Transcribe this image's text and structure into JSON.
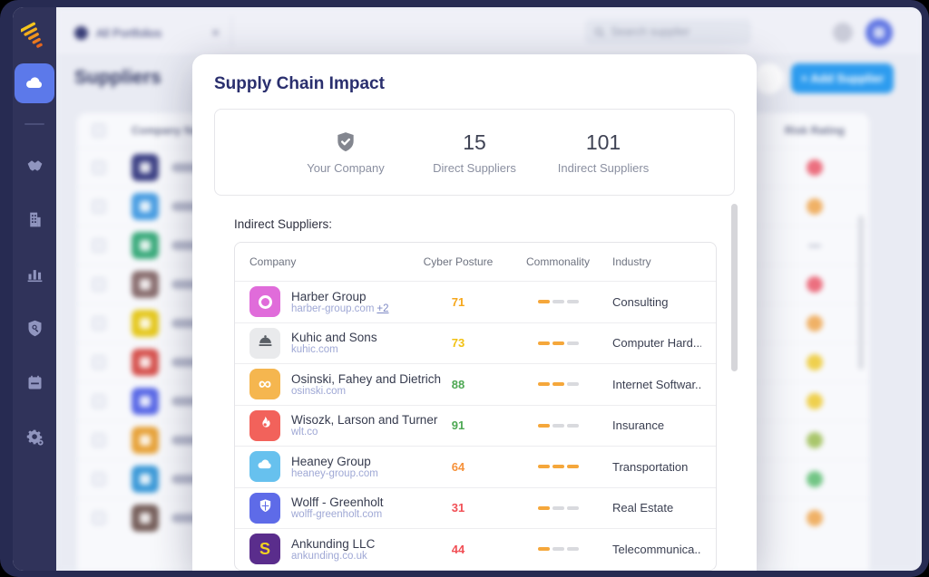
{
  "topbar": {
    "tab_label": "All Portfolios",
    "tab_close": "×",
    "search_placeholder": "Search supplier"
  },
  "sidebar": {
    "icons": [
      "cloud",
      "handshake",
      "building",
      "bar-chart",
      "shield-search",
      "calendar",
      "settings"
    ]
  },
  "page": {
    "title": "Suppliers",
    "add_button_label": "+ Add Supplier",
    "columns": {
      "company": "Company Name",
      "risk": "Risk Rating"
    },
    "rows": [
      {
        "avatar_color": "#3e4286",
        "name_width": 62,
        "risk": "#ec6f7f"
      },
      {
        "avatar_color": "#4a9ee2",
        "name_width": 68,
        "risk": "#f0b166"
      },
      {
        "avatar_color": "#3cab7d",
        "name_width": 74,
        "risk": "dash"
      },
      {
        "avatar_color": "#8a6f70",
        "name_width": 78,
        "risk": "#ec6f7f"
      },
      {
        "avatar_color": "#e5c81f",
        "name_width": 66,
        "risk": "#f0b166"
      },
      {
        "avatar_color": "#d65450",
        "name_width": 84,
        "risk": "#efd04e"
      },
      {
        "avatar_color": "#5a69e6",
        "name_width": 60,
        "risk": "#efd04e"
      },
      {
        "avatar_color": "#e7a33b",
        "name_width": 78,
        "risk": "#a9c66b"
      },
      {
        "avatar_color": "#3d9ad8",
        "name_width": 72,
        "risk": "#72c585"
      },
      {
        "avatar_color": "#77605c",
        "name_width": 66,
        "risk": "#f0b166"
      }
    ]
  },
  "modal": {
    "title": "Supply Chain Impact",
    "stats": {
      "company_label": "Your Company",
      "direct": {
        "value": "15",
        "label": "Direct Suppliers"
      },
      "indirect": {
        "value": "101",
        "label": "Indirect Suppliers"
      }
    },
    "section_label": "Indirect Suppliers:",
    "table": {
      "headers": [
        "Company",
        "Cyber Posture",
        "Commonality",
        "Industry"
      ],
      "commonality_filled_color": "#f5a73b",
      "commonality_empty_color": "#d9dade",
      "rows": [
        {
          "company": "Harber Group",
          "domain": "harber-group.com",
          "extra": "+2",
          "posture": "71",
          "posture_color": "#f6a71b",
          "commonality": 1,
          "commonality_total": 3,
          "industry": "Consulting",
          "icon": {
            "type": "ring",
            "bg": "#e06cda",
            "fg": "#ffffff"
          }
        },
        {
          "company": "Kuhic and Sons",
          "domain": "kuhic.com",
          "posture": "73",
          "posture_color": "#f2c112",
          "commonality": 2,
          "commonality_total": 3,
          "industry": "Computer Hard...",
          "icon": {
            "type": "dome",
            "bg": "#e9eaec",
            "fg": "#5a5f66"
          }
        },
        {
          "company": "Osinski, Fahey and Dietrich",
          "domain": "osinski.com",
          "posture": "88",
          "posture_color": "#4da853",
          "commonality": 2,
          "commonality_total": 3,
          "industry": "Internet Softwar...",
          "icon": {
            "type": "infinity",
            "bg": "#f5b64f",
            "fg": "#ffffff"
          }
        },
        {
          "company": "Wisozk, Larson and Turner",
          "domain": "wlt.co",
          "posture": "91",
          "posture_color": "#4da853",
          "commonality": 1,
          "commonality_total": 3,
          "industry": "Insurance",
          "icon": {
            "type": "flame",
            "bg": "#f2625b",
            "fg": "#ffffff"
          }
        },
        {
          "company": "Heaney Group",
          "domain": "heaney-group.com",
          "posture": "64",
          "posture_color": "#f6923b",
          "commonality": 3,
          "commonality_total": 3,
          "industry": "Transportation",
          "icon": {
            "type": "cloud",
            "bg": "#67c1ee",
            "fg": "#ffffff"
          }
        },
        {
          "company": "Wolff - Greenholt",
          "domain": "wolff-greenholt.com",
          "posture": "31",
          "posture_color": "#f14f55",
          "commonality": 1,
          "commonality_total": 3,
          "industry": "Real Estate",
          "icon": {
            "type": "shield",
            "bg": "#5e6be8",
            "fg": "#ffffff"
          }
        },
        {
          "company": "Ankunding LLC",
          "domain": "ankunding.co.uk",
          "posture": "44",
          "posture_color": "#f14f55",
          "commonality": 1,
          "commonality_total": 3,
          "industry": "Telecommunica...",
          "icon": {
            "type": "dollar",
            "bg": "#5a2d8c",
            "fg": "#f2d21f"
          }
        }
      ]
    }
  }
}
